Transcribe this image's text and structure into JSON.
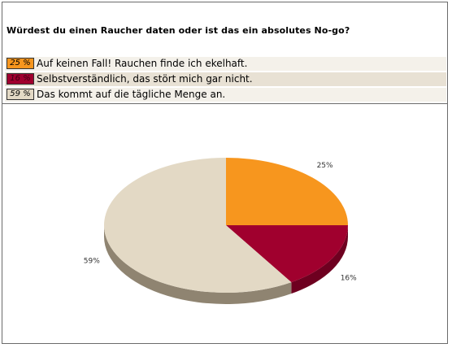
{
  "poll": {
    "question": "Würdest du einen Raucher daten oder ist das ein absolutes No-go?"
  },
  "chart_data": {
    "type": "pie",
    "categories": [
      "Auf keinen Fall! Rauchen finde ich ekelhaft.",
      "Selbstverständlich, das stört mich gar nicht.",
      "Das kommt auf die tägliche Menge an."
    ],
    "values": [
      25,
      16,
      59
    ],
    "value_labels": [
      "25 %",
      "16 %",
      "59 %"
    ],
    "slice_labels": [
      "25%",
      "16%",
      "59%"
    ],
    "colors": [
      "#f7961e",
      "#a0002e",
      "#e3d9c5"
    ],
    "shadow_colors": [
      "#b36d14",
      "#6e0020",
      "#8f8471"
    ],
    "legend_placement": "top"
  }
}
